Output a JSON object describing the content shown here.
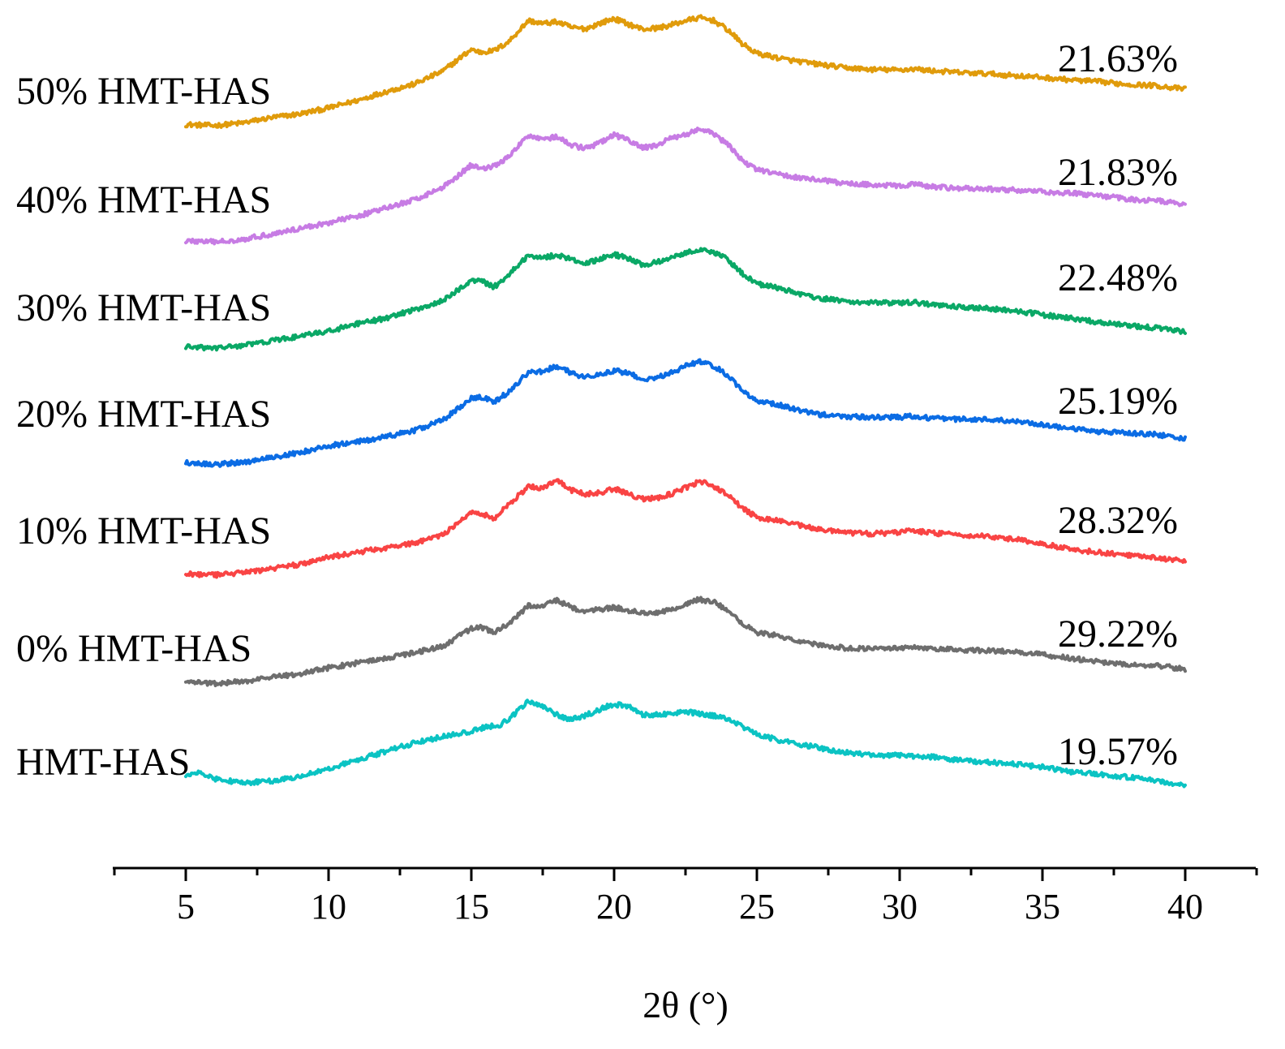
{
  "chart_data": {
    "type": "line",
    "title": "",
    "xlabel": "2θ (°)",
    "ylabel": "",
    "xlim": [
      2.5,
      42.5
    ],
    "xticks": [
      "5",
      "10",
      "15",
      "20",
      "25",
      "30",
      "35",
      "40"
    ],
    "grid": false,
    "legend": "labels left of each trace",
    "stacked_offsets": true,
    "series": [
      {
        "name": "50% HMT-HAS",
        "crystallinity": "21.63%",
        "color": "#E09B0B",
        "x": [
          5,
          6,
          7,
          8,
          9,
          10,
          11,
          12,
          13,
          14,
          15,
          15.3,
          15.8,
          16.3,
          17,
          17.5,
          18,
          18.5,
          19,
          19.5,
          20,
          20.5,
          21,
          21.5,
          22,
          22.5,
          23,
          23.5,
          24,
          24.5,
          25,
          26,
          27,
          28,
          29,
          30,
          30.5,
          31,
          32,
          33,
          34,
          35,
          36,
          37,
          38,
          39,
          40
        ],
        "values": [
          15.6,
          14.8,
          16.8,
          20.6,
          23.3,
          27.6,
          33.0,
          39.4,
          44.9,
          54.3,
          70.1,
          68.0,
          69.1,
          75.5,
          91.0,
          88.7,
          90.1,
          86.0,
          85.0,
          89.0,
          92.4,
          88.4,
          84.7,
          85.5,
          87.7,
          90.9,
          93.0,
          90.9,
          83.9,
          73.9,
          67.1,
          62.8,
          59.7,
          56.9,
          55.5,
          55.1,
          56.0,
          54.8,
          53.4,
          52.5,
          51.1,
          49.7,
          47.9,
          46.6,
          44.7,
          43.8,
          41.1
        ]
      },
      {
        "name": "40% HMT-HAS",
        "crystallinity": "21.83%",
        "color": "#C77CE4",
        "x": [
          5,
          6,
          7,
          8,
          9,
          10,
          11,
          12,
          13,
          14,
          15,
          15.3,
          15.8,
          16.3,
          17,
          17.5,
          18,
          18.5,
          19,
          19.5,
          20,
          20.5,
          21,
          21.5,
          22,
          22.5,
          23,
          23.5,
          24,
          24.5,
          25,
          26,
          27,
          28,
          29,
          30,
          30.5,
          31,
          32,
          33,
          34,
          35,
          36,
          37,
          38,
          39,
          40
        ],
        "values": [
          14.8,
          13.9,
          15.9,
          19.7,
          23.8,
          27.9,
          32.7,
          38.4,
          44.5,
          53.6,
          69.7,
          67.4,
          68.8,
          75.4,
          91.4,
          88.9,
          90.0,
          84.1,
          81.8,
          85.7,
          91.6,
          87.7,
          82.1,
          84.3,
          89.0,
          92.0,
          95.7,
          92.3,
          84.1,
          72.8,
          66.4,
          62.0,
          59.4,
          56.5,
          55.6,
          54.4,
          56.0,
          54.1,
          52.9,
          52.3,
          51.7,
          50.3,
          49.5,
          47.4,
          45.1,
          44.0,
          41.1
        ]
      },
      {
        "name": "30% HMT-HAS",
        "crystallinity": "22.48%",
        "color": "#0AA866",
        "x": [
          5,
          6,
          7,
          8,
          9,
          10,
          11,
          12,
          13,
          14,
          15,
          15.3,
          15.8,
          16.3,
          17,
          17.5,
          18,
          18.5,
          19,
          19.5,
          20,
          20.5,
          21,
          21.5,
          22,
          22.5,
          23,
          23.5,
          24,
          24.5,
          25,
          26,
          27,
          28,
          29,
          30,
          30.5,
          31,
          32,
          33,
          34,
          35,
          36,
          37,
          38,
          39,
          40
        ],
        "values": [
          15.6,
          14.6,
          16.6,
          19.9,
          23.2,
          27.0,
          32.1,
          36.3,
          42.5,
          48.8,
          63.8,
          63.9,
          59.0,
          67.8,
          82.0,
          80.1,
          82.4,
          79.0,
          75.9,
          79.4,
          82.5,
          79.6,
          74.8,
          76.9,
          80.5,
          83.9,
          86.1,
          84.3,
          78.6,
          68.6,
          61.4,
          56.9,
          51.4,
          48.8,
          47.6,
          47.1,
          47.9,
          46.3,
          44.5,
          43.4,
          41.9,
          38.8,
          36.3,
          33.4,
          31.0,
          29.3,
          26.4
        ]
      },
      {
        "name": "20% HMT-HAS",
        "crystallinity": "25.19%",
        "color": "#0B6CE4",
        "x": [
          5,
          6,
          7,
          8,
          9,
          10,
          11,
          12,
          13,
          14,
          15,
          15.3,
          15.8,
          16.3,
          17,
          17.5,
          18,
          18.5,
          19,
          19.5,
          20,
          20.5,
          21,
          21.5,
          22,
          22.5,
          23,
          23.5,
          24,
          24.5,
          25,
          26,
          27,
          28,
          29,
          30,
          30.5,
          31,
          32,
          33,
          34,
          35,
          36,
          37,
          38,
          39,
          40
        ],
        "values": [
          16.5,
          15.0,
          16.4,
          20.2,
          23.6,
          28.5,
          31.3,
          35.0,
          39.6,
          47.1,
          62.8,
          63.9,
          60.5,
          67.4,
          81.9,
          82.3,
          86.5,
          81.4,
          78.0,
          80.9,
          83.0,
          81.1,
          77.0,
          77.8,
          81.6,
          86.3,
          89.5,
          86.5,
          79.1,
          68.6,
          61.4,
          57.1,
          51.7,
          49.8,
          49.3,
          49.1,
          50.2,
          48.8,
          47.9,
          47.6,
          46.5,
          43.9,
          40.9,
          38.6,
          37.9,
          36.6,
          33.9
        ]
      },
      {
        "name": "10% HMT-HAS",
        "crystallinity": "28.32%",
        "color": "#F94444",
        "x": [
          5,
          6,
          7,
          8,
          9,
          10,
          11,
          12,
          13,
          14,
          15,
          15.3,
          15.8,
          16.3,
          17,
          17.5,
          18,
          18.5,
          19,
          19.5,
          20,
          20.5,
          21,
          21.5,
          22,
          22.5,
          23,
          23.5,
          24,
          24.5,
          25,
          26,
          27,
          28,
          29,
          30,
          30.5,
          31,
          32,
          33,
          34,
          35,
          36,
          37,
          38,
          39,
          40
        ],
        "values": [
          15.9,
          14.7,
          16.5,
          19.4,
          22.6,
          27.7,
          31.3,
          34.6,
          38.0,
          44.1,
          59.6,
          59.9,
          55.6,
          65.9,
          79.1,
          77.7,
          83.3,
          76.4,
          73.4,
          74.5,
          77.3,
          73.6,
          70.1,
          70.4,
          73.6,
          78.1,
          82.7,
          79.2,
          72.4,
          63.2,
          56.5,
          53.6,
          48.4,
          45.5,
          44.8,
          45.7,
          47.1,
          45.6,
          43.9,
          43.1,
          40.9,
          37.5,
          33.4,
          31.3,
          29.1,
          27.4,
          24.7
        ]
      },
      {
        "name": "0%  HMT-HAS",
        "crystallinity": "29.22%",
        "color": "#6E6E6E",
        "x": [
          5,
          6,
          7,
          8,
          9,
          10,
          11,
          12,
          13,
          14,
          15,
          15.3,
          15.8,
          16.3,
          17,
          17.5,
          18,
          18.5,
          19,
          19.5,
          20,
          20.5,
          21,
          21.5,
          22,
          22.5,
          23,
          23.5,
          24,
          24.5,
          25,
          26,
          27,
          28,
          29,
          30,
          30.5,
          31,
          32,
          33,
          34,
          35,
          36,
          37,
          38,
          39,
          40
        ],
        "values": [
          16.5,
          15.0,
          16.4,
          19.4,
          22.3,
          26.4,
          29.9,
          33.4,
          37.4,
          42.0,
          55.0,
          56.1,
          51.8,
          58.6,
          71.2,
          71.0,
          75.5,
          70.1,
          67.4,
          68.8,
          70.3,
          68.0,
          66.4,
          66.6,
          68.5,
          72.3,
          76.1,
          73.9,
          67.5,
          58.5,
          52.1,
          48.5,
          43.7,
          40.9,
          40.0,
          40.5,
          41.4,
          40.2,
          39.5,
          38.9,
          38.1,
          35.9,
          33.4,
          30.5,
          29.0,
          27.8,
          25.6
        ]
      },
      {
        "name": "HMT-HAS",
        "crystallinity": "19.57%",
        "color": "#0BC3C3",
        "x": [
          5,
          5.5,
          6,
          7,
          8,
          9,
          10,
          11,
          12,
          13,
          14,
          15,
          15.5,
          16,
          16.5,
          17,
          17.5,
          18,
          18.5,
          19,
          19.5,
          20,
          20.5,
          21,
          21.5,
          22,
          22.5,
          23,
          23.5,
          24,
          24.5,
          25,
          26,
          27,
          28,
          29,
          30,
          31,
          32,
          33,
          34,
          35,
          36,
          37,
          38,
          39,
          40
        ],
        "values": [
          32.5,
          35.1,
          30.5,
          27.8,
          29.1,
          32.5,
          38.2,
          44.1,
          50.4,
          56.6,
          61.1,
          65.0,
          68.1,
          69.4,
          77.0,
          87.4,
          83.0,
          76.9,
          73.6,
          76.5,
          80.9,
          84.9,
          82.8,
          77.0,
          77.1,
          77.5,
          79.4,
          77.7,
          76.3,
          74.1,
          68.6,
          62.6,
          57.6,
          53.9,
          49.9,
          48.0,
          47.6,
          46.8,
          44.2,
          42.6,
          41.4,
          39.1,
          35.8,
          33.7,
          31.9,
          29.4,
          25.6
        ]
      }
    ]
  }
}
